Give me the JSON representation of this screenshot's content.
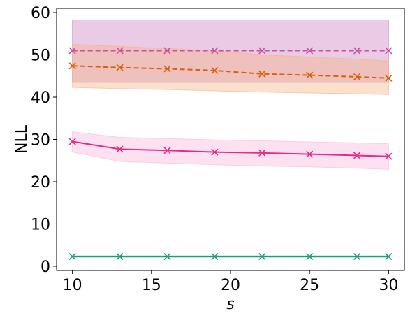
{
  "chart_data": {
    "type": "line",
    "xlabel": "s",
    "ylabel": "NLL",
    "xlim": [
      9.0,
      31.0
    ],
    "ylim": [
      -1.0,
      61.0
    ],
    "xticks": [
      10,
      15,
      20,
      25,
      30
    ],
    "yticks": [
      0,
      10,
      20,
      30,
      40,
      50,
      60
    ],
    "grid": false,
    "x": [
      10,
      13,
      16,
      19,
      22,
      25,
      28,
      30
    ],
    "series": [
      {
        "color": "#cc4fa0",
        "dash": "dashed",
        "values": [
          51.0,
          51.0,
          51.0,
          51.0,
          51.0,
          51.0,
          51.0,
          51.0
        ],
        "band_low": [
          43.5,
          43.5,
          43.5,
          43.5,
          43.5,
          43.5,
          43.5,
          43.5
        ],
        "band_high": [
          58.3,
          58.3,
          58.3,
          58.3,
          58.3,
          58.3,
          58.3,
          58.3
        ],
        "band_color": "#c77dbf"
      },
      {
        "color": "#d95f0e",
        "dash": "dashed",
        "values": [
          47.4,
          47.0,
          46.7,
          46.3,
          45.5,
          45.2,
          44.8,
          44.5
        ],
        "band_low": [
          42.3,
          42.0,
          41.8,
          41.5,
          41.2,
          41.0,
          40.8,
          40.6
        ],
        "band_high": [
          52.5,
          52.0,
          51.5,
          51.0,
          50.0,
          49.5,
          49.0,
          48.5
        ],
        "band_color": "#f4b183"
      },
      {
        "color": "#e7298a",
        "dash": "solid",
        "values": [
          29.5,
          27.7,
          27.4,
          27.0,
          26.8,
          26.5,
          26.2,
          26.0
        ],
        "band_low": [
          27.0,
          24.8,
          24.4,
          24.0,
          23.7,
          23.5,
          23.2,
          22.9
        ],
        "band_high": [
          31.8,
          30.5,
          30.2,
          29.9,
          29.7,
          29.4,
          29.2,
          29.0
        ],
        "band_color": "#fbb4d9"
      },
      {
        "color": "#1b9e77",
        "dash": "solid",
        "values": [
          2.3,
          2.3,
          2.3,
          2.3,
          2.3,
          2.3,
          2.3,
          2.3
        ],
        "band_low": [
          2.1,
          2.1,
          2.1,
          2.1,
          2.1,
          2.1,
          2.1,
          2.1
        ],
        "band_high": [
          2.5,
          2.5,
          2.5,
          2.5,
          2.5,
          2.5,
          2.5,
          2.5
        ],
        "band_color": "#8fd3bf"
      }
    ]
  }
}
